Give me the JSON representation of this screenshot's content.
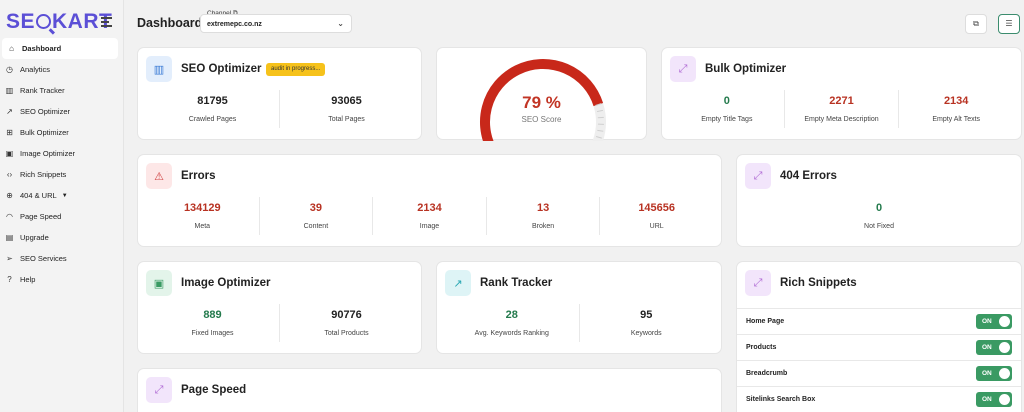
{
  "app": {
    "logo_text_a": "SE",
    "logo_text_b": "KART"
  },
  "sidebar": {
    "items": [
      {
        "label": "Dashboard",
        "icon": "home-icon",
        "glyph": "⌂"
      },
      {
        "label": "Analytics",
        "icon": "clock-icon",
        "glyph": "◷"
      },
      {
        "label": "Rank Tracker",
        "icon": "bar-chart-icon",
        "glyph": "▥"
      },
      {
        "label": "SEO Optimizer",
        "icon": "trend-icon",
        "glyph": "↗"
      },
      {
        "label": "Bulk Optimizer",
        "icon": "grid-icon",
        "glyph": "⊞"
      },
      {
        "label": "Image Optimizer",
        "icon": "image-icon",
        "glyph": "▣"
      },
      {
        "label": "Rich Snippets",
        "icon": "code-icon",
        "glyph": "‹›"
      },
      {
        "label": "404 & URL",
        "icon": "globe-icon",
        "glyph": "⊕"
      },
      {
        "label": "Page Speed",
        "icon": "speedometer-icon",
        "glyph": "◠"
      },
      {
        "label": "Upgrade",
        "icon": "clipboard-icon",
        "glyph": "▤"
      },
      {
        "label": "SEO Services",
        "icon": "send-icon",
        "glyph": "➢"
      },
      {
        "label": "Help",
        "icon": "help-icon",
        "glyph": "?"
      }
    ]
  },
  "header": {
    "title": "Dashboard",
    "channel_label": "Channel",
    "channel_value": "extremepc.co.nz"
  },
  "seo_optimizer": {
    "title": "SEO Optimizer",
    "badge": "audit in progress...",
    "stats": [
      {
        "value": "81795",
        "label": "Crawled Pages"
      },
      {
        "value": "93065",
        "label": "Total Pages"
      }
    ]
  },
  "seo_score": {
    "value": "79 %",
    "label": "SEO Score",
    "percent": 79,
    "color": "#c8281a"
  },
  "bulk_optimizer": {
    "title": "Bulk Optimizer",
    "stats": [
      {
        "value": "0",
        "label": "Empty Title Tags"
      },
      {
        "value": "2271",
        "label": "Empty Meta Description"
      },
      {
        "value": "2134",
        "label": "Empty Alt Texts"
      }
    ]
  },
  "errors": {
    "title": "Errors",
    "stats": [
      {
        "value": "134129",
        "label": "Meta"
      },
      {
        "value": "39",
        "label": "Content"
      },
      {
        "value": "2134",
        "label": "Image"
      },
      {
        "value": "13",
        "label": "Broken"
      },
      {
        "value": "145656",
        "label": "URL"
      }
    ]
  },
  "errors_404": {
    "title": "404 Errors",
    "stats": [
      {
        "value": "0",
        "label": "Not Fixed"
      }
    ]
  },
  "image_optimizer": {
    "title": "Image Optimizer",
    "stats": [
      {
        "value": "889",
        "label": "Fixed Images"
      },
      {
        "value": "90776",
        "label": "Total Products"
      }
    ]
  },
  "rank_tracker": {
    "title": "Rank Tracker",
    "stats": [
      {
        "value": "28",
        "label": "Avg. Keywords Ranking"
      },
      {
        "value": "95",
        "label": "Keywords"
      }
    ]
  },
  "rich_snippets": {
    "title": "Rich Snippets",
    "rows": [
      {
        "label": "Home Page",
        "state": "ON"
      },
      {
        "label": "Products",
        "state": "ON"
      },
      {
        "label": "Breadcrumb",
        "state": "ON"
      },
      {
        "label": "Sitelinks Search Box",
        "state": "ON"
      }
    ]
  },
  "page_speed": {
    "title": "Page Speed"
  }
}
